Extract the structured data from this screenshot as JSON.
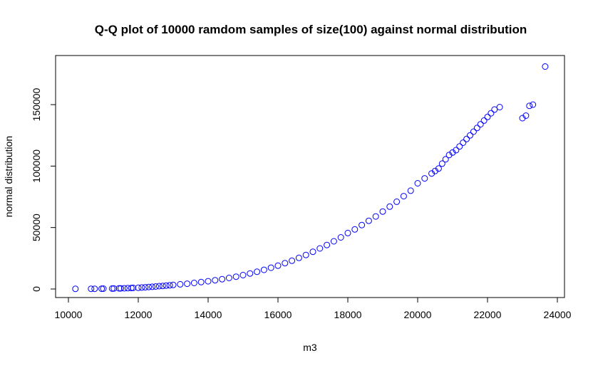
{
  "chart_data": {
    "type": "scatter",
    "title": "Q-Q plot of 10000 ramdom samples of size(100) against normal distribution",
    "xlabel": "m3",
    "ylabel": "normal distribution",
    "xlim": [
      10000,
      24000
    ],
    "ylim": [
      0,
      180000
    ],
    "x_ticks": [
      10000,
      12000,
      14000,
      16000,
      18000,
      20000,
      22000,
      24000
    ],
    "y_ticks": [
      0,
      50000,
      100000,
      150000
    ],
    "x_tick_labels": [
      "10000",
      "12000",
      "14000",
      "16000",
      "18000",
      "20000",
      "22000",
      "24000"
    ],
    "y_tick_labels": [
      "0",
      "50000",
      "100000",
      "150000"
    ],
    "marker": "open-circle",
    "color": "#0000ff",
    "grid": false,
    "legend": "none",
    "series": [
      {
        "x": [
          10200,
          10650,
          10750,
          10950,
          11000,
          11250,
          11300,
          11450,
          11500,
          11600,
          11700,
          11800,
          11850,
          12000,
          12100,
          12200,
          12300,
          12400,
          12500,
          12600,
          12700,
          12800,
          12900,
          13000,
          13200,
          13400,
          13600,
          13800,
          14000,
          14200,
          14400,
          14600,
          14800,
          15000,
          15200,
          15400,
          15600,
          15800,
          16000,
          16200,
          16400,
          16600,
          16800,
          17000,
          17200,
          17400,
          17600,
          17800,
          18000,
          18200,
          18400,
          18600,
          18800,
          19000,
          19200,
          19400,
          19600,
          19800,
          20000,
          20200,
          20400,
          20500,
          20600,
          20700,
          20800,
          20900,
          21000,
          21100,
          21200,
          21300,
          21400,
          21500,
          21600,
          21700,
          21800,
          21900,
          22000,
          22100,
          22200,
          22350,
          23000,
          23100,
          23200,
          23300,
          23650
        ],
        "y": [
          100,
          150,
          200,
          250,
          300,
          350,
          400,
          500,
          550,
          600,
          700,
          800,
          900,
          1000,
          1200,
          1400,
          1600,
          1800,
          2000,
          2300,
          2500,
          2800,
          3000,
          3300,
          3800,
          4300,
          4900,
          5600,
          6300,
          7100,
          8000,
          9000,
          10000,
          11300,
          12600,
          14000,
          15600,
          17300,
          19000,
          21000,
          23000,
          25300,
          27700,
          30300,
          33000,
          35800,
          38800,
          42000,
          45500,
          48500,
          52000,
          55500,
          59000,
          63000,
          67000,
          71000,
          75500,
          80000,
          86000,
          90000,
          94000,
          96000,
          98000,
          102000,
          105500,
          109000,
          111000,
          113000,
          116000,
          119000,
          122000,
          125000,
          128000,
          131000,
          134000,
          137000,
          140000,
          143000,
          146000,
          148000,
          139000,
          141000,
          149000,
          150000,
          181000
        ]
      }
    ]
  }
}
